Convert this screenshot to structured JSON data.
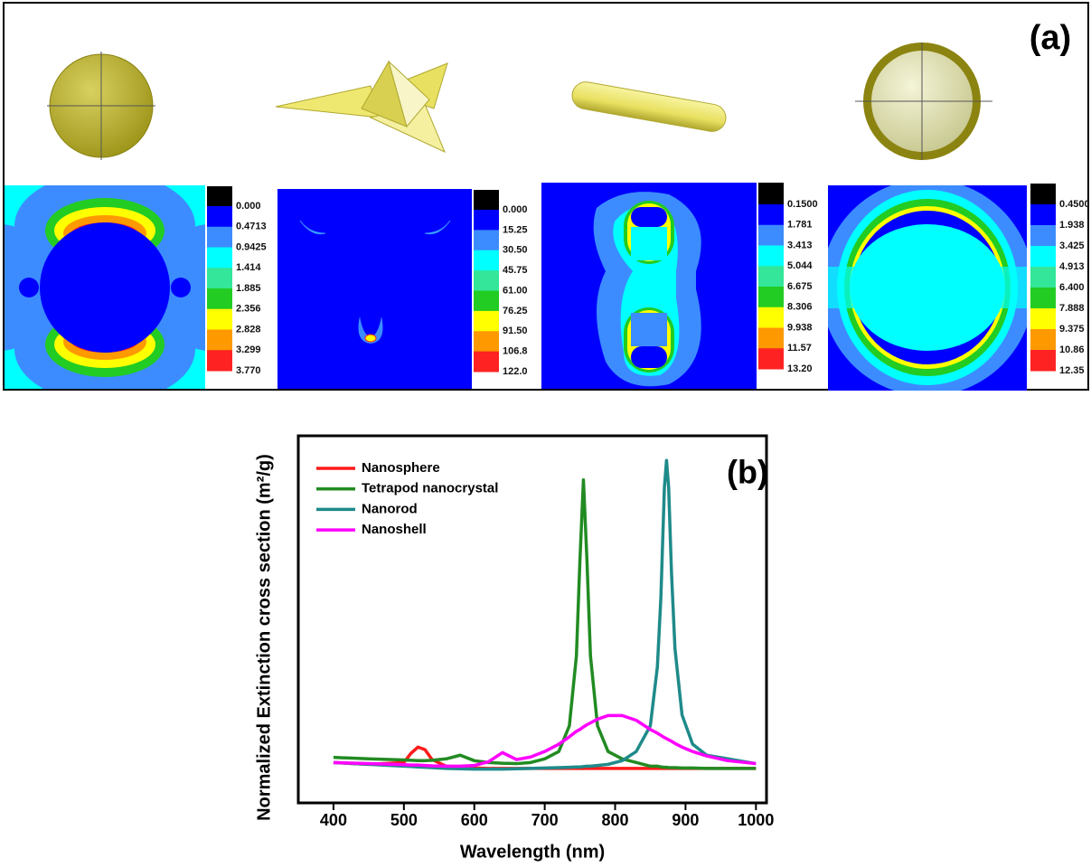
{
  "panel_a": {
    "label": "(a)",
    "colorbars": [
      {
        "labels": [
          "0.000",
          "0.4713",
          "0.9425",
          "1.414",
          "1.885",
          "2.356",
          "2.828",
          "3.299",
          "3.770"
        ]
      },
      {
        "labels": [
          "0.000",
          "15.25",
          "30.50",
          "45.75",
          "61.00",
          "76.25",
          "91.50",
          "106.8",
          "122.0"
        ]
      },
      {
        "labels": [
          "0.1500",
          "1.781",
          "3.413",
          "5.044",
          "6.675",
          "8.306",
          "9.938",
          "11.57",
          "13.20"
        ]
      },
      {
        "labels": [
          "0.4500",
          "1.938",
          "3.425",
          "4.913",
          "6.400",
          "7.888",
          "9.375",
          "10.86",
          "12.35"
        ]
      }
    ]
  },
  "chart_data": {
    "type": "line",
    "annotation": "(b)",
    "x_label": "Wavelength (nm)",
    "y_label": "Normalized Extinction cross section (m²/g)",
    "x": [
      400,
      450,
      500,
      510,
      520,
      530,
      540,
      560,
      580,
      600,
      620,
      640,
      660,
      680,
      700,
      720,
      735,
      745,
      750,
      755,
      760,
      765,
      775,
      790,
      810,
      830,
      850,
      860,
      865,
      870,
      873,
      876,
      880,
      885,
      895,
      910,
      930,
      960,
      1000
    ],
    "series": [
      {
        "name": "Nanosphere",
        "color": "#ff1a1a",
        "values": [
          0.11,
          0.105,
          0.11,
          0.135,
          0.152,
          0.145,
          0.118,
          0.1,
          0.097,
          0.095,
          0.094,
          0.094,
          0.094,
          0.094,
          0.094,
          0.094,
          0.094,
          0.094,
          0.094,
          0.094,
          0.094,
          0.094,
          0.094,
          0.094,
          0.094,
          0.094,
          0.094,
          0.094,
          0.094,
          0.094,
          0.094,
          0.094,
          0.094,
          0.094,
          0.094,
          0.094,
          0.094,
          0.094,
          0.094
        ]
      },
      {
        "name": "Tetrapod nanocrystal",
        "color": "#228b22",
        "values": [
          0.124,
          0.12,
          0.117,
          0.116,
          0.115,
          0.115,
          0.116,
          0.12,
          0.13,
          0.115,
          0.11,
          0.108,
          0.107,
          0.11,
          0.12,
          0.14,
          0.21,
          0.4,
          0.66,
          0.88,
          0.66,
          0.4,
          0.21,
          0.14,
          0.12,
          0.11,
          0.1,
          0.1,
          0.098,
          0.097,
          0.097,
          0.096,
          0.096,
          0.096,
          0.095,
          0.095,
          0.094,
          0.094,
          0.094
        ]
      },
      {
        "name": "Nanorod",
        "color": "#1f8a8a",
        "values": [
          0.11,
          0.105,
          0.1,
          0.099,
          0.098,
          0.097,
          0.096,
          0.094,
          0.093,
          0.092,
          0.092,
          0.092,
          0.093,
          0.094,
          0.095,
          0.096,
          0.097,
          0.098,
          0.098,
          0.099,
          0.1,
          0.1,
          0.102,
          0.105,
          0.115,
          0.14,
          0.21,
          0.37,
          0.56,
          0.86,
          0.933,
          0.86,
          0.63,
          0.42,
          0.24,
          0.16,
          0.13,
          0.12,
          0.107
        ]
      },
      {
        "name": "Nanoshell",
        "color": "#ff00ff",
        "values": [
          0.11,
          0.107,
          0.104,
          0.103,
          0.103,
          0.102,
          0.101,
          0.1,
          0.1,
          0.102,
          0.112,
          0.137,
          0.118,
          0.125,
          0.14,
          0.16,
          0.18,
          0.195,
          0.2,
          0.207,
          0.213,
          0.218,
          0.228,
          0.238,
          0.238,
          0.225,
          0.2,
          0.19,
          0.184,
          0.178,
          0.175,
          0.172,
          0.168,
          0.162,
          0.152,
          0.14,
          0.128,
          0.115,
          0.107
        ]
      }
    ],
    "xlim": [
      350,
      1015
    ],
    "ylim": [
      0,
      1
    ],
    "xticks": [
      400,
      500,
      600,
      700,
      800,
      900,
      1000
    ]
  }
}
